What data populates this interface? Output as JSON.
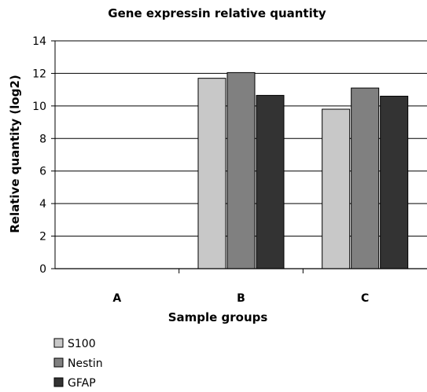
{
  "chart_data": {
    "type": "bar",
    "title": "Gene expressin relative quantity",
    "xlabel": "Sample groups",
    "ylabel": "Relative quantity (log2)",
    "ylim": [
      0,
      14
    ],
    "yticks": [
      0,
      2,
      4,
      6,
      8,
      10,
      12,
      14
    ],
    "grid": true,
    "legend_position": "bottom-left",
    "categories": [
      "A",
      "B",
      "C"
    ],
    "series": [
      {
        "name": "S100",
        "color": "#c8c8c8",
        "values": [
          0,
          11.7,
          9.8
        ]
      },
      {
        "name": "Nestin",
        "color": "#808080",
        "values": [
          0,
          12.05,
          11.1
        ]
      },
      {
        "name": "GFAP",
        "color": "#333333",
        "values": [
          0,
          10.65,
          10.6
        ]
      }
    ]
  }
}
